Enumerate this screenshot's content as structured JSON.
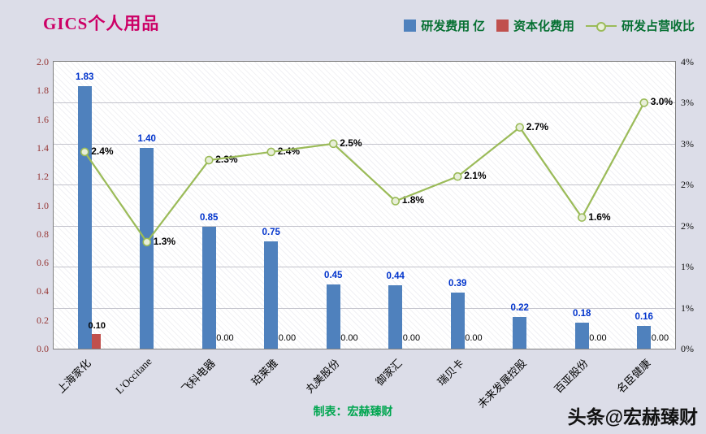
{
  "title": "GICS个人用品",
  "credit": "制表：宏赫臻财",
  "watermark": "头条@宏赫臻财",
  "colors": {
    "title": "#cc0066",
    "rd_expense_bar": "#4f81bd",
    "capitalized_bar": "#c0504d",
    "ratio_line": "#9bbb59",
    "bar_value_label": "#0033cc",
    "credit_text": "#00a650",
    "left_axis_text": "#963634"
  },
  "legend": [
    {
      "label": "研发费用 亿",
      "type": "bar",
      "color": "#4f81bd"
    },
    {
      "label": "资本化费用",
      "type": "bar",
      "color": "#c0504d"
    },
    {
      "label": "研发占营收比",
      "type": "line",
      "color": "#9bbb59"
    }
  ],
  "chart_data": {
    "type": "combo-bar-line",
    "title": "GICS个人用品",
    "grid": true,
    "legend_position": "top-right",
    "categories": [
      "上海家化",
      "L'Occitane",
      "飞科电器",
      "珀莱雅",
      "丸美股份",
      "御家汇",
      "瑞贝卡",
      "未来发展控股",
      "百亚股份",
      "名臣健康"
    ],
    "series": [
      {
        "name": "研发费用 亿",
        "type": "bar",
        "axis": "left",
        "color": "#4f81bd",
        "values": [
          1.83,
          1.4,
          0.85,
          0.75,
          0.45,
          0.44,
          0.39,
          0.22,
          0.18,
          0.16
        ],
        "labels": [
          "1.83",
          "1.40",
          "0.85",
          "0.75",
          "0.45",
          "0.44",
          "0.39",
          "0.22",
          "0.18",
          "0.16"
        ]
      },
      {
        "name": "资本化费用",
        "type": "bar",
        "axis": "left",
        "color": "#c0504d",
        "values": [
          0.1,
          null,
          0,
          0,
          0,
          0,
          0,
          null,
          0,
          0
        ],
        "labels": [
          "0.10",
          null,
          "0.00",
          "0.00",
          "0.00",
          "0.00",
          "0.00",
          null,
          "0.00",
          "0.00"
        ]
      },
      {
        "name": "研发占营收比",
        "type": "line",
        "axis": "right",
        "color": "#9bbb59",
        "values": [
          2.4,
          1.3,
          2.3,
          2.4,
          2.5,
          1.8,
          2.1,
          2.7,
          1.6,
          3.0
        ],
        "labels": [
          "2.4%",
          "1.3%",
          "2.3%",
          "2.4%",
          "2.5%",
          "1.8%",
          "2.1%",
          "2.7%",
          "1.6%",
          "3.0%"
        ]
      }
    ],
    "left_axis": {
      "min": 0.0,
      "max": 2.0,
      "step": 0.2,
      "tick_labels": [
        "0.0",
        "0.2",
        "0.4",
        "0.6",
        "0.8",
        "1.0",
        "1.2",
        "1.4",
        "1.6",
        "1.8",
        "2.0"
      ]
    },
    "right_axis": {
      "min": 0.0,
      "max": 3.5,
      "step": 0.5,
      "tick_labels": [
        "0%",
        "1%",
        "1%",
        "2%",
        "2%",
        "3%",
        "3%",
        "4%"
      ]
    }
  }
}
